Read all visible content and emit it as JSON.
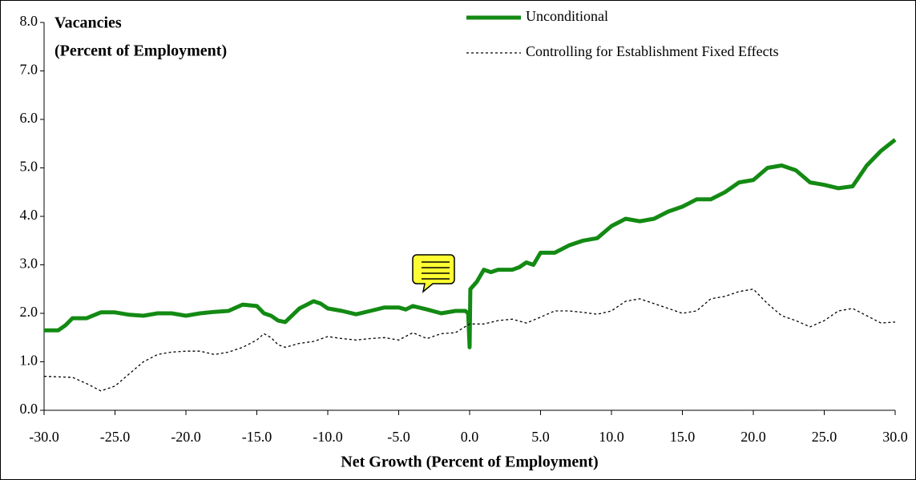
{
  "chart_data": {
    "type": "line",
    "title": "Vacancies",
    "subtitle": "(Percent of Employment)",
    "xlabel": "Net Growth (Percent of Employment)",
    "xlim": [
      -30,
      30
    ],
    "xticks": [
      {
        "value": -30,
        "label": "-30.0"
      },
      {
        "value": -25,
        "label": "-25.0"
      },
      {
        "value": -20,
        "label": "-20.0"
      },
      {
        "value": -15,
        "label": "-15.0"
      },
      {
        "value": -10,
        "label": "-10.0"
      },
      {
        "value": -5,
        "label": "-5.0"
      },
      {
        "value": 0,
        "label": "0.0"
      },
      {
        "value": 5,
        "label": "5.0"
      },
      {
        "value": 10,
        "label": "10.0"
      },
      {
        "value": 15,
        "label": "15.0"
      },
      {
        "value": 20,
        "label": "20.0"
      },
      {
        "value": 25,
        "label": "25.0"
      },
      {
        "value": 30,
        "label": "30.0"
      }
    ],
    "ylim": [
      0,
      8
    ],
    "yticks": [
      {
        "value": 0,
        "label": "0.0"
      },
      {
        "value": 1,
        "label": "1.0"
      },
      {
        "value": 2,
        "label": "2.0"
      },
      {
        "value": 3,
        "label": "3.0"
      },
      {
        "value": 4,
        "label": "4.0"
      },
      {
        "value": 5,
        "label": "5.0"
      },
      {
        "value": 6,
        "label": "6.0"
      },
      {
        "value": 7,
        "label": "7.0"
      },
      {
        "value": 8,
        "label": "8.0"
      }
    ],
    "legend": "top-right",
    "series": [
      {
        "name": "Unconditional",
        "color": "#138a13",
        "style": "solid",
        "x": [
          -30,
          -29,
          -28.5,
          -28,
          -27,
          -26,
          -25,
          -24,
          -23,
          -22,
          -21,
          -20,
          -19,
          -18,
          -17,
          -16,
          -15,
          -14.5,
          -14,
          -13.5,
          -13,
          -12,
          -11,
          -10.5,
          -10,
          -9,
          -8,
          -7,
          -6,
          -5,
          -4.5,
          -4,
          -3,
          -2,
          -1,
          -0.3,
          -0.1,
          0,
          0.05,
          0.5,
          1,
          1.5,
          2,
          3,
          3.5,
          4,
          4.5,
          5,
          6,
          7,
          8,
          9,
          10,
          11,
          12,
          13,
          14,
          15,
          16,
          17,
          18,
          19,
          20,
          21,
          22,
          23,
          24,
          25,
          26,
          27,
          28,
          29,
          30
        ],
        "values": [
          1.65,
          1.65,
          1.75,
          1.9,
          1.9,
          2.02,
          2.02,
          1.97,
          1.95,
          2.0,
          2.0,
          1.95,
          2.0,
          2.03,
          2.05,
          2.18,
          2.15,
          2.0,
          1.95,
          1.85,
          1.82,
          2.1,
          2.25,
          2.2,
          2.1,
          2.05,
          1.98,
          2.05,
          2.12,
          2.12,
          2.08,
          2.15,
          2.08,
          2.0,
          2.05,
          2.05,
          2.0,
          1.3,
          2.5,
          2.65,
          2.9,
          2.85,
          2.9,
          2.9,
          2.95,
          3.05,
          3.0,
          3.25,
          3.25,
          3.4,
          3.5,
          3.55,
          3.8,
          3.95,
          3.9,
          3.95,
          4.1,
          4.2,
          4.35,
          4.35,
          4.5,
          4.7,
          4.75,
          5.0,
          5.05,
          4.95,
          4.7,
          4.65,
          4.58,
          4.62,
          5.05,
          5.35,
          5.58
        ]
      },
      {
        "name": "Controlling for Establishment Fixed Effects",
        "color": "#000000",
        "style": "dotted",
        "x": [
          -30,
          -28,
          -27,
          -26,
          -25,
          -24,
          -23,
          -22,
          -21,
          -20,
          -19,
          -18,
          -17,
          -16,
          -15,
          -14.5,
          -14,
          -13.5,
          -13,
          -12,
          -11,
          -10,
          -9,
          -8,
          -7,
          -6,
          -5,
          -4,
          -3,
          -2,
          -1,
          0,
          1,
          2,
          3,
          4,
          5,
          6,
          7,
          8,
          9,
          10,
          11,
          12,
          13,
          14,
          15,
          16,
          17,
          18,
          19,
          20,
          21,
          22,
          23,
          24,
          25,
          26,
          27,
          28,
          29,
          30
        ],
        "values": [
          0.7,
          0.68,
          0.55,
          0.4,
          0.5,
          0.75,
          1.0,
          1.15,
          1.2,
          1.22,
          1.22,
          1.15,
          1.2,
          1.3,
          1.45,
          1.58,
          1.5,
          1.35,
          1.3,
          1.38,
          1.42,
          1.52,
          1.48,
          1.45,
          1.48,
          1.5,
          1.45,
          1.6,
          1.48,
          1.58,
          1.6,
          1.78,
          1.78,
          1.85,
          1.88,
          1.8,
          1.92,
          2.05,
          2.05,
          2.02,
          1.98,
          2.05,
          2.25,
          2.3,
          2.2,
          2.1,
          2.0,
          2.05,
          2.3,
          2.35,
          2.45,
          2.5,
          2.2,
          1.95,
          1.85,
          1.72,
          1.85,
          2.05,
          2.1,
          1.95,
          1.8,
          1.82
        ]
      }
    ]
  }
}
